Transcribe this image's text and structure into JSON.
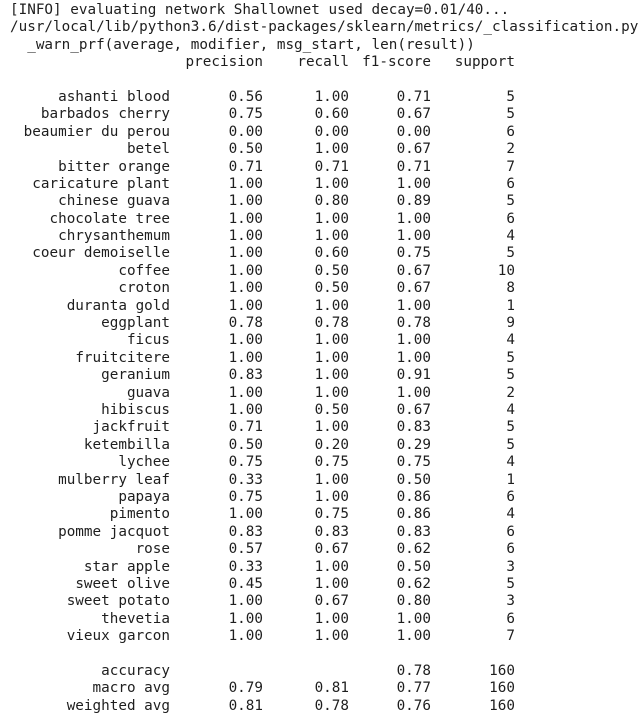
{
  "log": {
    "line1": "[INFO] evaluating network Shallownet used decay=0.01/40...",
    "line2": "/usr/local/lib/python3.6/dist-packages/sklearn/metrics/_classification.py",
    "line3": "  _warn_prf(average, modifier, msg_start, len(result))"
  },
  "report": {
    "headers": [
      "precision",
      "recall",
      "f1-score",
      "support"
    ],
    "rows": [
      {
        "label": "ashanti blood",
        "precision": "0.56",
        "recall": "1.00",
        "f1": "0.71",
        "support": "5"
      },
      {
        "label": "barbados cherry",
        "precision": "0.75",
        "recall": "0.60",
        "f1": "0.67",
        "support": "5"
      },
      {
        "label": "beaumier du perou",
        "precision": "0.00",
        "recall": "0.00",
        "f1": "0.00",
        "support": "6"
      },
      {
        "label": "betel",
        "precision": "0.50",
        "recall": "1.00",
        "f1": "0.67",
        "support": "2"
      },
      {
        "label": "bitter orange",
        "precision": "0.71",
        "recall": "0.71",
        "f1": "0.71",
        "support": "7"
      },
      {
        "label": "caricature plant",
        "precision": "1.00",
        "recall": "1.00",
        "f1": "1.00",
        "support": "6"
      },
      {
        "label": "chinese guava",
        "precision": "1.00",
        "recall": "0.80",
        "f1": "0.89",
        "support": "5"
      },
      {
        "label": "chocolate tree",
        "precision": "1.00",
        "recall": "1.00",
        "f1": "1.00",
        "support": "6"
      },
      {
        "label": "chrysanthemum",
        "precision": "1.00",
        "recall": "1.00",
        "f1": "1.00",
        "support": "4"
      },
      {
        "label": "coeur demoiselle",
        "precision": "1.00",
        "recall": "0.60",
        "f1": "0.75",
        "support": "5"
      },
      {
        "label": "coffee",
        "precision": "1.00",
        "recall": "0.50",
        "f1": "0.67",
        "support": "10"
      },
      {
        "label": "croton",
        "precision": "1.00",
        "recall": "0.50",
        "f1": "0.67",
        "support": "8"
      },
      {
        "label": "duranta gold",
        "precision": "1.00",
        "recall": "1.00",
        "f1": "1.00",
        "support": "1"
      },
      {
        "label": "eggplant",
        "precision": "0.78",
        "recall": "0.78",
        "f1": "0.78",
        "support": "9"
      },
      {
        "label": "ficus",
        "precision": "1.00",
        "recall": "1.00",
        "f1": "1.00",
        "support": "4"
      },
      {
        "label": "fruitcitere",
        "precision": "1.00",
        "recall": "1.00",
        "f1": "1.00",
        "support": "5"
      },
      {
        "label": "geranium",
        "precision": "0.83",
        "recall": "1.00",
        "f1": "0.91",
        "support": "5"
      },
      {
        "label": "guava",
        "precision": "1.00",
        "recall": "1.00",
        "f1": "1.00",
        "support": "2"
      },
      {
        "label": "hibiscus",
        "precision": "1.00",
        "recall": "0.50",
        "f1": "0.67",
        "support": "4"
      },
      {
        "label": "jackfruit",
        "precision": "0.71",
        "recall": "1.00",
        "f1": "0.83",
        "support": "5"
      },
      {
        "label": "ketembilla",
        "precision": "0.50",
        "recall": "0.20",
        "f1": "0.29",
        "support": "5"
      },
      {
        "label": "lychee",
        "precision": "0.75",
        "recall": "0.75",
        "f1": "0.75",
        "support": "4"
      },
      {
        "label": "mulberry leaf",
        "precision": "0.33",
        "recall": "1.00",
        "f1": "0.50",
        "support": "1"
      },
      {
        "label": "papaya",
        "precision": "0.75",
        "recall": "1.00",
        "f1": "0.86",
        "support": "6"
      },
      {
        "label": "pimento",
        "precision": "1.00",
        "recall": "0.75",
        "f1": "0.86",
        "support": "4"
      },
      {
        "label": "pomme jacquot",
        "precision": "0.83",
        "recall": "0.83",
        "f1": "0.83",
        "support": "6"
      },
      {
        "label": "rose",
        "precision": "0.57",
        "recall": "0.67",
        "f1": "0.62",
        "support": "6"
      },
      {
        "label": "star apple",
        "precision": "0.33",
        "recall": "1.00",
        "f1": "0.50",
        "support": "3"
      },
      {
        "label": "sweet olive",
        "precision": "0.45",
        "recall": "1.00",
        "f1": "0.62",
        "support": "5"
      },
      {
        "label": "sweet potato",
        "precision": "1.00",
        "recall": "0.67",
        "f1": "0.80",
        "support": "3"
      },
      {
        "label": "thevetia",
        "precision": "1.00",
        "recall": "1.00",
        "f1": "1.00",
        "support": "6"
      },
      {
        "label": "vieux garcon",
        "precision": "1.00",
        "recall": "1.00",
        "f1": "1.00",
        "support": "7"
      }
    ],
    "summary": [
      {
        "label": "accuracy",
        "precision": "",
        "recall": "",
        "f1": "0.78",
        "support": "160"
      },
      {
        "label": "macro avg",
        "precision": "0.79",
        "recall": "0.81",
        "f1": "0.77",
        "support": "160"
      },
      {
        "label": "weighted avg",
        "precision": "0.81",
        "recall": "0.78",
        "f1": "0.76",
        "support": "160"
      }
    ]
  }
}
